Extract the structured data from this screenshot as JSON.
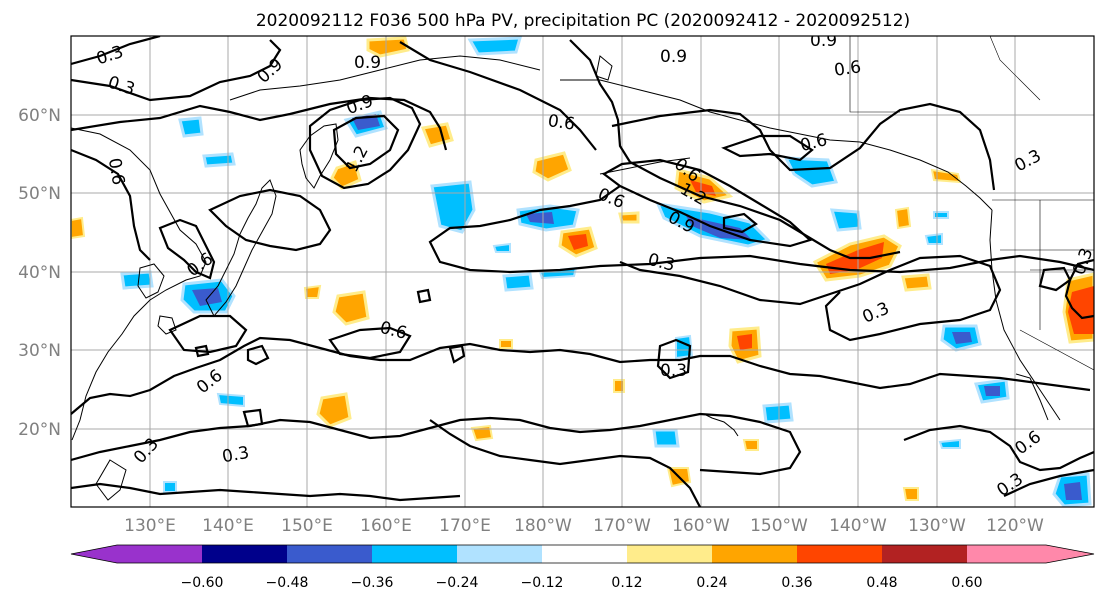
{
  "title": "2020092112 F036 500 hPa PV, precipitation PC (2020092412 - 2020092512)",
  "lat_labels": [
    "60°N",
    "50°N",
    "40°N",
    "30°N",
    "20°N"
  ],
  "lon_labels": [
    "130°E",
    "140°E",
    "150°E",
    "160°E",
    "170°E",
    "180°W",
    "170°W",
    "160°W",
    "150°W",
    "140°W",
    "130°W",
    "120°W"
  ],
  "colorbar": {
    "colors": [
      "#9932cc",
      "#00008b",
      "#3a5bcd",
      "#00bfff",
      "#b0e2ff",
      "#ffffff",
      "#ffec8b",
      "#ffa500",
      "#ff4500",
      "#b22222",
      "#ff88aa"
    ],
    "tick_labels": [
      "−0.60",
      "−0.48",
      "−0.36",
      "−0.24",
      "−0.12",
      "0.12",
      "0.24",
      "0.36",
      "0.48",
      "0.60"
    ]
  },
  "contour_labels": [
    "0.3",
    "0.3",
    "0.9",
    "0.9",
    "1.2",
    "0.6",
    "0.9",
    "0.9",
    "0.6",
    "0.9",
    "0.3",
    "0.6",
    "0.6",
    "0.6",
    "1.2",
    "0.6",
    "0.9",
    "0.3",
    "0.6",
    "0.3",
    "0.6",
    "0.6",
    "0.3",
    "0.3",
    "0.3",
    "0.6",
    "0.3",
    "0.3"
  ]
}
